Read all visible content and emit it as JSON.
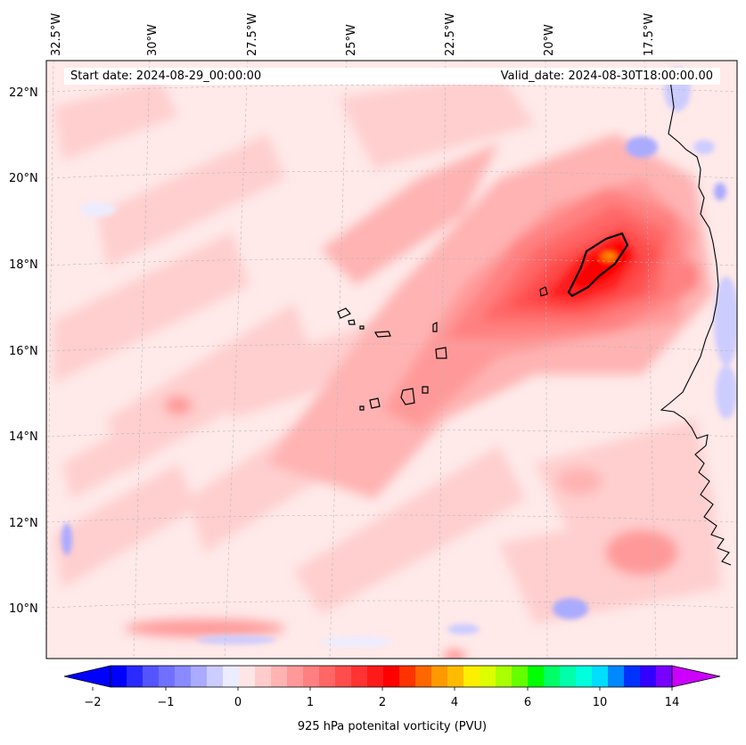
{
  "header": {
    "start_date": "Start date: 2024-08-29_00:00:00",
    "valid_date": "Valid_date: 2024-08-30T18:00:00.00"
  },
  "lon_labels": [
    "32.5°W",
    "30°W",
    "27.5°W",
    "25°W",
    "22.5°W",
    "20°W",
    "17.5°W"
  ],
  "lat_labels": [
    "22°N",
    "20°N",
    "18°N",
    "16°N",
    "14°N",
    "12°N",
    "10°N"
  ],
  "colorbar": {
    "label": "925 hPa potenital vorticity (PVU)",
    "ticks": [
      "−2",
      "−1",
      "0",
      "1",
      "2",
      "4",
      "6",
      "10",
      "14"
    ],
    "colors": [
      "#0000ff",
      "#2a2aff",
      "#5555ff",
      "#7070ff",
      "#8a8aff",
      "#aaaaff",
      "#ccccff",
      "#ececff",
      "#ffe6e6",
      "#ffcccc",
      "#ffb3b3",
      "#ff9999",
      "#ff8080",
      "#ff6666",
      "#ff4d4d",
      "#ff3333",
      "#ff1a1a",
      "#ff0000",
      "#ff3300",
      "#ff6600",
      "#ff9900",
      "#ffbb00",
      "#ffee00",
      "#ddff00",
      "#aaff00",
      "#66ff00",
      "#00ff00",
      "#00ff66",
      "#00ffaa",
      "#00ffdd",
      "#00ddff",
      "#0088ff",
      "#0033ff",
      "#3300ff",
      "#7700ff"
    ],
    "under_color": "#0000ff",
    "over_color": "#cc00ff"
  },
  "map": {
    "background_color": "#ffe9e9",
    "land_color": "#ffe9e9",
    "coastline_color": "#000000"
  }
}
